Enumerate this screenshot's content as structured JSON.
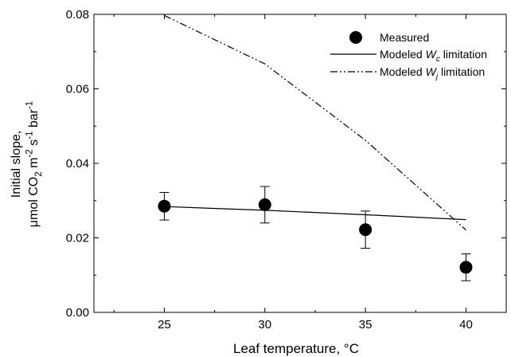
{
  "chart_data": {
    "type": "scatter",
    "title": "",
    "xlabel": "Leaf temperature, °C",
    "ylabel": {
      "line1": "Initial slope,",
      "line2_parts": [
        {
          "t": "μmol CO",
          "s": "n"
        },
        {
          "t": "2",
          "s": "sub"
        },
        {
          "t": " m",
          "s": "n"
        },
        {
          "t": "-2",
          "s": "sup"
        },
        {
          "t": " s",
          "s": "n"
        },
        {
          "t": "-1",
          "s": "sup"
        },
        {
          "t": " bar",
          "s": "n"
        },
        {
          "t": "-1",
          "s": "sup"
        }
      ]
    },
    "xlim": [
      21.5,
      42
    ],
    "ylim": [
      0.0,
      0.08
    ],
    "xticks": [
      25,
      30,
      35,
      40
    ],
    "yticks": [
      0.0,
      0.02,
      0.04,
      0.06,
      0.08
    ],
    "ytick_labels": [
      "0.00",
      "0.02",
      "0.04",
      "0.06",
      "0.08"
    ],
    "legend_position": "top-right",
    "series": [
      {
        "name": "Measured",
        "kind": "points",
        "x": [
          25,
          30,
          35,
          40
        ],
        "y": [
          0.0285,
          0.0289,
          0.0222,
          0.0121
        ],
        "err": [
          0.0037,
          0.0049,
          0.005,
          0.0036
        ]
      },
      {
        "name_parts": [
          {
            "t": "Modeled ",
            "s": "n"
          },
          {
            "t": "W",
            "s": "i"
          },
          {
            "t": "c",
            "s": "isub"
          },
          {
            "t": " limitation",
            "s": "n"
          }
        ],
        "kind": "solid",
        "x": [
          25,
          30,
          35,
          40
        ],
        "y": [
          0.0284,
          0.0274,
          0.0262,
          0.0249
        ]
      },
      {
        "name_parts": [
          {
            "t": "Modeled ",
            "s": "n"
          },
          {
            "t": "W",
            "s": "i"
          },
          {
            "t": "j",
            "s": "isub"
          },
          {
            "t": " limitation",
            "s": "n"
          }
        ],
        "kind": "dashdotdot",
        "x": [
          25,
          30,
          35,
          40
        ],
        "y": [
          0.0797,
          0.0667,
          0.0462,
          0.0221
        ]
      }
    ]
  }
}
